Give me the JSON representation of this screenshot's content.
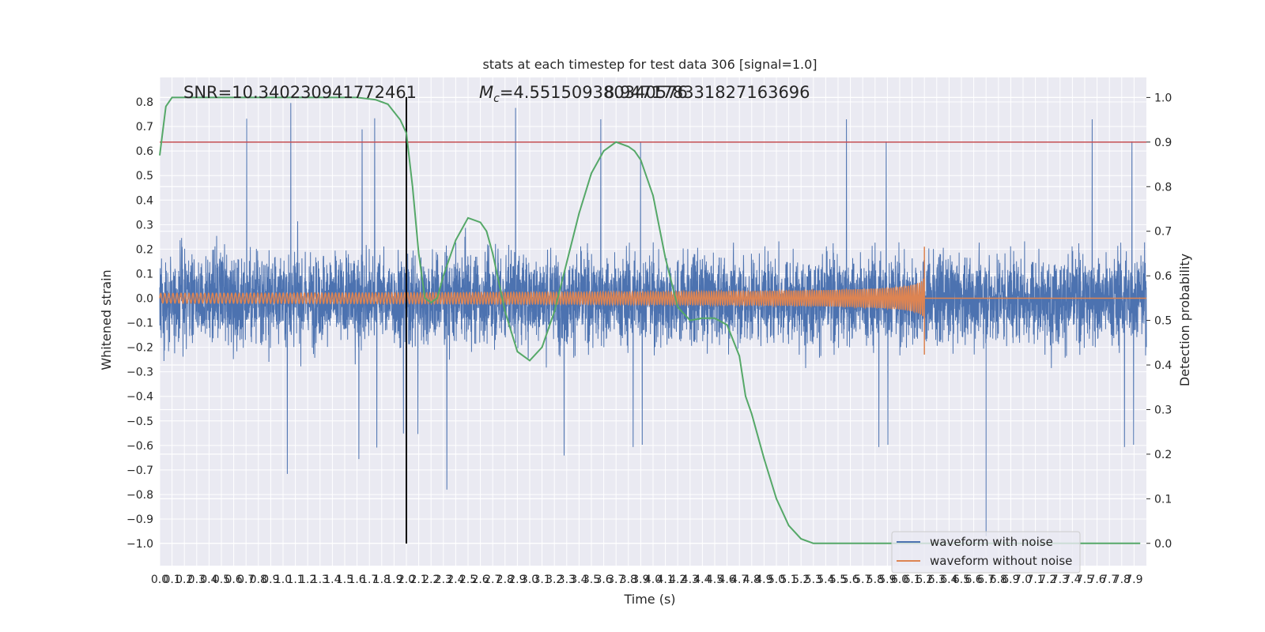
{
  "chart_data": {
    "type": "line",
    "title": "stats at each timestep for test data 306 [signal=1.0]",
    "xlabel": "Time (s)",
    "ylabel": "Whitened strain",
    "y2label": "Detection probability",
    "xlim": [
      0,
      8
    ],
    "ylim": [
      -1.09,
      0.9
    ],
    "y2lim": [
      -0.05,
      1.045
    ],
    "x_ticks": [
      0.0,
      0.1,
      0.2,
      0.3,
      0.4,
      0.5,
      0.6,
      0.7,
      0.8,
      0.9,
      1.0,
      1.1,
      1.2,
      1.3,
      1.4,
      1.5,
      1.6,
      1.7,
      1.8,
      1.9,
      2.0,
      2.1,
      2.2,
      2.3,
      2.4,
      2.5,
      2.6,
      2.7,
      2.8,
      2.9,
      3.0,
      3.1,
      3.2,
      3.3,
      3.4,
      3.5,
      3.6,
      3.7,
      3.8,
      3.9,
      4.0,
      4.1,
      4.2,
      4.3,
      4.4,
      4.5,
      4.6,
      4.7,
      4.8,
      4.9,
      5.0,
      5.1,
      5.2,
      5.3,
      5.4,
      5.5,
      5.6,
      5.7,
      5.8,
      5.9,
      6.0,
      6.1,
      6.2,
      6.3,
      6.4,
      6.5,
      6.6,
      6.7,
      6.8,
      6.9,
      7.0,
      7.1,
      7.2,
      7.3,
      7.4,
      7.5,
      7.6,
      7.7,
      7.8,
      7.9
    ],
    "y_ticks": [
      0.8,
      0.7,
      0.6,
      0.5,
      0.4,
      0.3,
      0.2,
      0.1,
      0.0,
      -0.1,
      -0.2,
      -0.3,
      -0.4,
      -0.5,
      -0.6,
      -0.7,
      -0.8,
      -0.9,
      -1.0
    ],
    "y_tick_labels": [
      "0.8",
      "0.7",
      "0.6",
      "0.5",
      "0.4",
      "0.3",
      "0.2",
      "0.1",
      "0.0",
      "−0.1",
      "−0.2",
      "−0.3",
      "−0.4",
      "−0.5",
      "−0.6",
      "−0.7",
      "−0.8",
      "−0.9",
      "−1.0"
    ],
    "y2_ticks": [
      1.0,
      0.9,
      0.8,
      0.7,
      0.6,
      0.5,
      0.4,
      0.3,
      0.2,
      0.1,
      0.0
    ],
    "y2_tick_labels": [
      "1.0",
      "0.9",
      "0.8",
      "0.7",
      "0.6",
      "0.5",
      "0.4",
      "0.3",
      "0.2",
      "0.1",
      "0.0"
    ],
    "grid": true,
    "legend_position": "bottom-right",
    "annotations": {
      "snr": "SNR=10.340230941772461",
      "mc_symbol": "M",
      "mc_subscript": "c",
      "mc_value": "=4.551509380340576",
      "overlap_value": "8.947178331827163696"
    },
    "threshold": {
      "value": 0.9,
      "axis": "y2",
      "color": "#c44e52"
    },
    "marker_line": {
      "x": 2.0,
      "y_range": [
        -1.0,
        0.82
      ],
      "color": "#000000"
    },
    "series": [
      {
        "name": "waveform with noise",
        "color": "#4c72b0",
        "axis": "y",
        "description_values": {
          "typical_abs_max": 0.3,
          "peak_max": 0.81,
          "peak_min": -0.97,
          "deep_spike_x": 6.7
        }
      },
      {
        "name": "waveform without noise",
        "color": "#dd8452",
        "axis": "y",
        "chirp": {
          "start_x": 0.0,
          "merger_x": 6.2,
          "start_amplitude": 0.02,
          "peak_amplitude_pos": 0.21,
          "peak_amplitude_neg": -0.23
        }
      },
      {
        "name": "",
        "color": "#55a868",
        "axis": "y2",
        "x": [
          0.0,
          0.05,
          0.1,
          0.2,
          0.4,
          0.8,
          1.2,
          1.6,
          1.75,
          1.85,
          1.95,
          2.0,
          2.05,
          2.1,
          2.15,
          2.2,
          2.25,
          2.3,
          2.4,
          2.5,
          2.6,
          2.65,
          2.7,
          2.8,
          2.9,
          3.0,
          3.1,
          3.2,
          3.3,
          3.4,
          3.5,
          3.6,
          3.7,
          3.8,
          3.85,
          3.9,
          4.0,
          4.1,
          4.2,
          4.3,
          4.4,
          4.5,
          4.6,
          4.7,
          4.75,
          4.8,
          4.9,
          5.0,
          5.1,
          5.2,
          5.3,
          5.4,
          5.5,
          6.0,
          6.5,
          7.0,
          7.5,
          7.95
        ],
        "values": [
          0.87,
          0.98,
          1.0,
          1.0,
          1.0,
          1.0,
          1.0,
          1.0,
          0.995,
          0.985,
          0.95,
          0.92,
          0.8,
          0.65,
          0.55,
          0.54,
          0.55,
          0.6,
          0.68,
          0.73,
          0.72,
          0.7,
          0.65,
          0.52,
          0.43,
          0.41,
          0.44,
          0.52,
          0.63,
          0.74,
          0.83,
          0.88,
          0.9,
          0.89,
          0.88,
          0.86,
          0.78,
          0.64,
          0.53,
          0.5,
          0.505,
          0.505,
          0.49,
          0.42,
          0.33,
          0.29,
          0.19,
          0.1,
          0.04,
          0.01,
          0.0,
          0.0,
          0.0,
          0.0,
          0.0,
          0.0,
          0.0,
          0.0
        ]
      }
    ]
  }
}
